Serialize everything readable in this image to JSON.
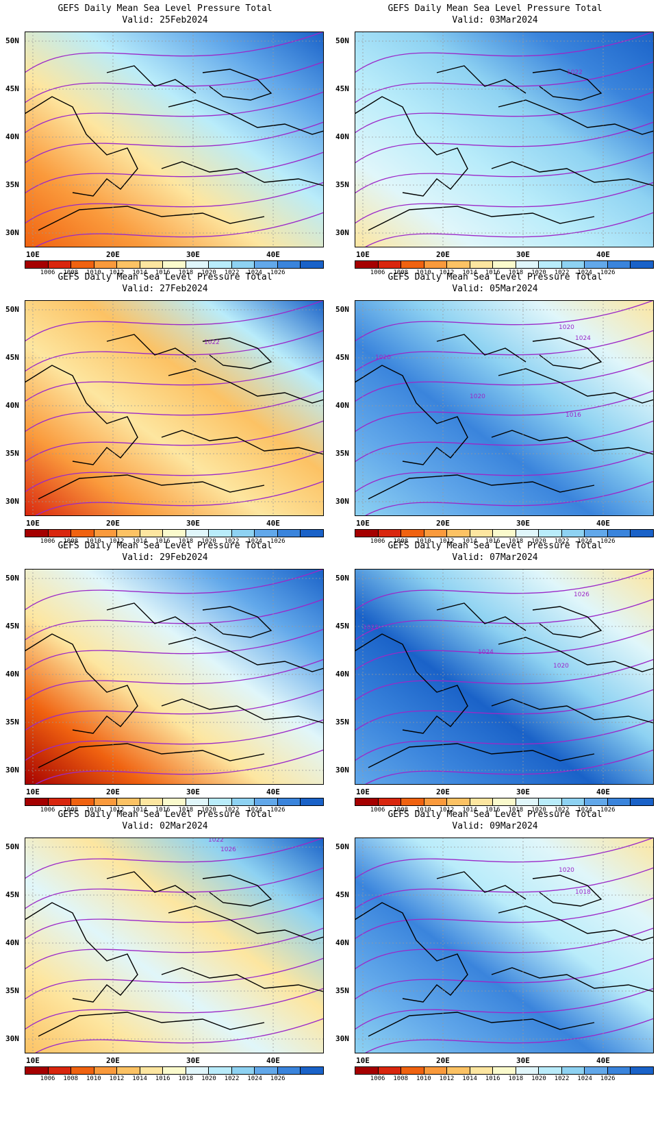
{
  "panels": [
    {
      "title": "GEFS Daily Mean Sea Level Pressure Total",
      "valid": "Valid: 25Feb2024",
      "labels": []
    },
    {
      "title": "GEFS Daily Mean Sea Level Pressure Total",
      "valid": "Valid: 03Mar2024",
      "labels": [
        "1022"
      ]
    },
    {
      "title": "GEFS Daily Mean Sea Level Pressure Total",
      "valid": "Valid: 27Feb2024",
      "labels": [
        "1022"
      ]
    },
    {
      "title": "GEFS Daily Mean Sea Level Pressure Total",
      "valid": "Valid: 05Mar2024",
      "labels": [
        "1020",
        "1024",
        "1020",
        "1020",
        "1016"
      ]
    },
    {
      "title": "GEFS Daily Mean Sea Level Pressure Total",
      "valid": "Valid: 29Feb2024",
      "labels": []
    },
    {
      "title": "GEFS Daily Mean Sea Level Pressure Total",
      "valid": "Valid: 07Mar2024",
      "labels": [
        "1026",
        "1022",
        "1024",
        "1020"
      ]
    },
    {
      "title": "GEFS Daily Mean Sea Level Pressure Total",
      "valid": "Valid: 02Mar2024",
      "labels": [
        "1022",
        "1026"
      ]
    },
    {
      "title": "GEFS Daily Mean Sea Level Pressure Total",
      "valid": "Valid: 09Mar2024",
      "labels": [
        "1020",
        "1018"
      ]
    }
  ],
  "x_ticks": [
    "10E",
    "20E",
    "30E",
    "40E"
  ],
  "y_ticks": [
    "50N",
    "45N",
    "40N",
    "35N",
    "30N"
  ],
  "colorbar": {
    "levels": [
      "1006",
      "1008",
      "1010",
      "1012",
      "1014",
      "1016",
      "1018",
      "1020",
      "1022",
      "1024",
      "1026"
    ],
    "colors": [
      "#a50000",
      "#d9260e",
      "#f06210",
      "#fa9a3c",
      "#fcc264",
      "#fde6a0",
      "#fafacc",
      "#e0f6fa",
      "#b9ecfa",
      "#8ed2f2",
      "#62a8ea",
      "#3a84dc",
      "#1a62c8"
    ]
  }
}
